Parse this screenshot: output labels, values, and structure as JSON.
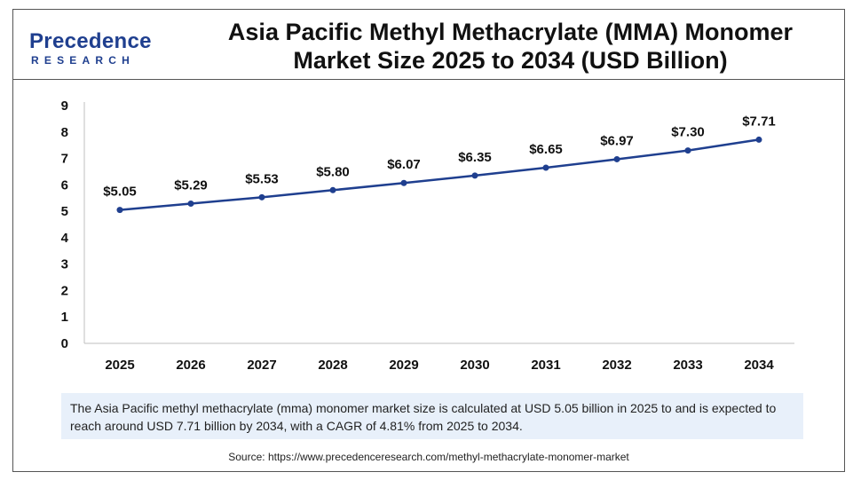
{
  "header": {
    "logo_main": "Precedence",
    "logo_sub": "RESEARCH",
    "title_line1": "Asia Pacific Methyl Methacrylate (MMA) Monomer",
    "title_line2": "Market Size 2025 to 2034 (USD Billion)"
  },
  "colors": {
    "line": "#1f3f8f",
    "brand": "#1f3f8f",
    "caption_bg": "#e8f0fa"
  },
  "chart_data": {
    "type": "line",
    "title": "Asia Pacific Methyl Methacrylate (MMA) Monomer Market Size 2025 to 2034 (USD Billion)",
    "xlabel": "",
    "ylabel": "",
    "categories": [
      "2025",
      "2026",
      "2027",
      "2028",
      "2029",
      "2030",
      "2031",
      "2032",
      "2033",
      "2034"
    ],
    "series": [
      {
        "values": [
          5.05,
          5.29,
          5.53,
          5.8,
          6.07,
          6.35,
          6.65,
          6.97,
          7.3,
          7.71
        ]
      }
    ],
    "data_labels": [
      "$5.05",
      "$5.29",
      "$5.53",
      "$5.80",
      "$6.07",
      "$6.35",
      "$6.65",
      "$6.97",
      "$7.30",
      "$7.71"
    ],
    "yticks": [
      0,
      1,
      2,
      3,
      4,
      5,
      6,
      7,
      8,
      9
    ],
    "ylim": [
      0,
      9
    ],
    "grid": false,
    "legend": "none"
  },
  "caption": "The Asia Pacific methyl methacrylate (mma) monomer market size is calculated at USD 5.05 billion in 2025 to and is expected to reach around USD 7.71 billion by 2034, with a CAGR of 4.81% from 2025 to 2034.",
  "source": "Source: https://www.precedenceresearch.com/methyl-methacrylate-monomer-market"
}
